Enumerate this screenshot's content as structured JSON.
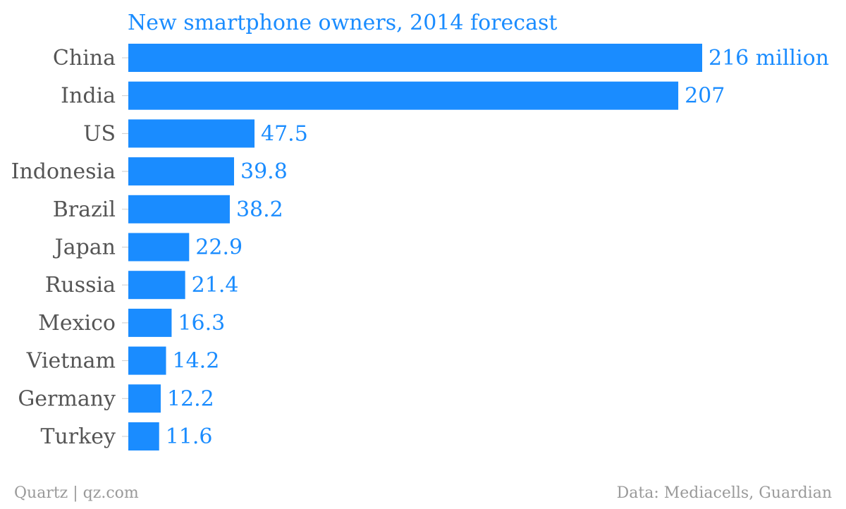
{
  "chart_data": {
    "type": "bar",
    "orientation": "horizontal",
    "title": "New smartphone owners, 2014 forecast",
    "categories": [
      "China",
      "India",
      "US",
      "Indonesia",
      "Brazil",
      "Japan",
      "Russia",
      "Mexico",
      "Vietnam",
      "Germany",
      "Turkey"
    ],
    "values": [
      216,
      207,
      47.5,
      39.8,
      38.2,
      22.9,
      21.4,
      16.3,
      14.2,
      12.2,
      11.6
    ],
    "value_labels": [
      "216 million",
      "207",
      "47.5",
      "39.8",
      "38.2",
      "22.9",
      "21.4",
      "16.3",
      "14.2",
      "12.2",
      "11.6"
    ],
    "xlim": [
      0,
      216
    ],
    "grid": false,
    "colors": {
      "bar": "#1a8cff",
      "title": "#1a8cff",
      "value_label": "#1a8cff",
      "category_label": "#555555",
      "footer": "#9a9a9a"
    }
  },
  "footer": {
    "source_left": "Quartz | qz.com",
    "source_right": "Data: Mediacells, Guardian"
  }
}
